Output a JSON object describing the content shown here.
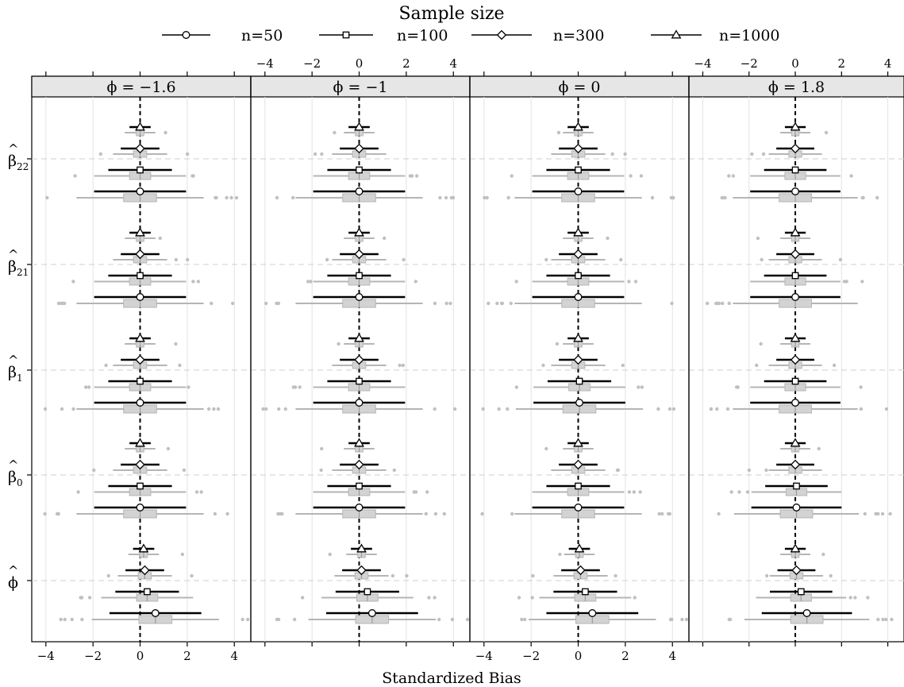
{
  "chart_data": {
    "type": "dot-interval-boxplot",
    "legend": {
      "title": "Sample size",
      "placement": "top",
      "entries": [
        {
          "label": "n=50",
          "marker": "circle"
        },
        {
          "label": "n=100",
          "marker": "square"
        },
        {
          "label": "n=300",
          "marker": "diamond"
        },
        {
          "label": "n=1000",
          "marker": "triangle"
        }
      ]
    },
    "xlabel": "Standardized Bias",
    "xlim": [
      -4.6,
      4.7
    ],
    "xticks": [
      -4,
      -2,
      0,
      2,
      4
    ],
    "xtick_labels": [
      "−4",
      "−2",
      "0",
      "2",
      "4"
    ],
    "grid": true,
    "reference_line": 0,
    "panels": [
      {
        "label": "ϕ = −1.6"
      },
      {
        "label": "ϕ = −1"
      },
      {
        "label": "ϕ = 0"
      },
      {
        "label": "ϕ = 1.8"
      }
    ],
    "parameters": [
      {
        "base": "β",
        "sub": "22"
      },
      {
        "base": "β",
        "sub": "21"
      },
      {
        "base": "β",
        "sub": "1"
      },
      {
        "base": "β",
        "sub": "0"
      },
      {
        "base": "ϕ",
        "sub": ""
      }
    ],
    "point_estimates": [
      [
        [
          0.0,
          0.0,
          0.0,
          0.0
        ],
        [
          0.0,
          0.0,
          0.0,
          0.0
        ],
        [
          0.0,
          0.0,
          0.0,
          0.0
        ],
        [
          0.0,
          0.0,
          0.0,
          0.0
        ],
        [
          0.65,
          0.3,
          0.2,
          0.15
        ]
      ],
      [
        [
          0.0,
          0.0,
          0.0,
          0.0
        ],
        [
          0.0,
          0.0,
          0.0,
          0.0
        ],
        [
          0.0,
          0.0,
          0.0,
          0.0
        ],
        [
          0.0,
          0.0,
          0.0,
          0.0
        ],
        [
          0.55,
          0.35,
          0.1,
          0.1
        ]
      ],
      [
        [
          0.0,
          0.0,
          0.0,
          0.0
        ],
        [
          0.0,
          0.0,
          0.0,
          0.0
        ],
        [
          0.05,
          0.05,
          0.0,
          0.0
        ],
        [
          0.0,
          0.0,
          0.0,
          0.0
        ],
        [
          0.6,
          0.3,
          0.1,
          0.05
        ]
      ],
      [
        [
          0.0,
          0.0,
          0.0,
          0.0
        ],
        [
          0.0,
          0.0,
          0.0,
          0.0
        ],
        [
          0.0,
          0.0,
          0.0,
          0.0
        ],
        [
          0.05,
          0.05,
          0.0,
          0.0
        ],
        [
          0.5,
          0.25,
          0.05,
          0.0
        ]
      ]
    ],
    "interval_half_width": [
      1.95,
      1.35,
      0.82,
      0.45
    ],
    "box_iqr_half_width": [
      0.7,
      0.45,
      0.28,
      0.16
    ],
    "whisker_half_width": [
      2.7,
      1.95,
      1.15,
      0.65
    ]
  }
}
